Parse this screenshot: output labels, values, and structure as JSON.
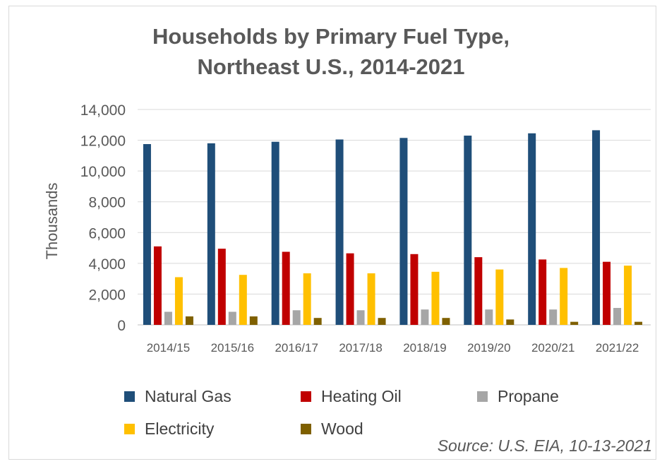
{
  "chart_data": {
    "type": "bar",
    "title_line1": "Households by Primary Fuel Type,",
    "title_line2": "Northeast U.S., 2014-2021",
    "xlabel": "",
    "ylabel": "Thousands",
    "ylim": [
      0,
      14000
    ],
    "yticks": [
      "0",
      "2,000",
      "4,000",
      "6,000",
      "8,000",
      "10,000",
      "12,000",
      "14,000"
    ],
    "grid": true,
    "legend_placement": "bottom",
    "categories": [
      "2014/15",
      "2015/16",
      "2016/17",
      "2017/18",
      "2018/19",
      "2019/20",
      "2020/21",
      "2021/22"
    ],
    "series": [
      {
        "name": "Natural Gas",
        "color": "#1f4e79",
        "values": [
          11750,
          11800,
          11900,
          12050,
          12150,
          12300,
          12450,
          12650
        ]
      },
      {
        "name": "Heating Oil",
        "color": "#c00000",
        "values": [
          5100,
          4950,
          4750,
          4650,
          4600,
          4400,
          4250,
          4100
        ]
      },
      {
        "name": "Propane",
        "color": "#a6a6a6",
        "values": [
          850,
          850,
          950,
          950,
          1000,
          1000,
          1000,
          1100
        ]
      },
      {
        "name": "Electricity",
        "color": "#ffc000",
        "values": [
          3100,
          3250,
          3350,
          3350,
          3450,
          3600,
          3700,
          3850
        ]
      },
      {
        "name": "Wood",
        "color": "#7f6000",
        "values": [
          550,
          550,
          450,
          450,
          450,
          350,
          200,
          200
        ]
      }
    ]
  },
  "source": "Source: U.S. EIA, 10-13-2021"
}
